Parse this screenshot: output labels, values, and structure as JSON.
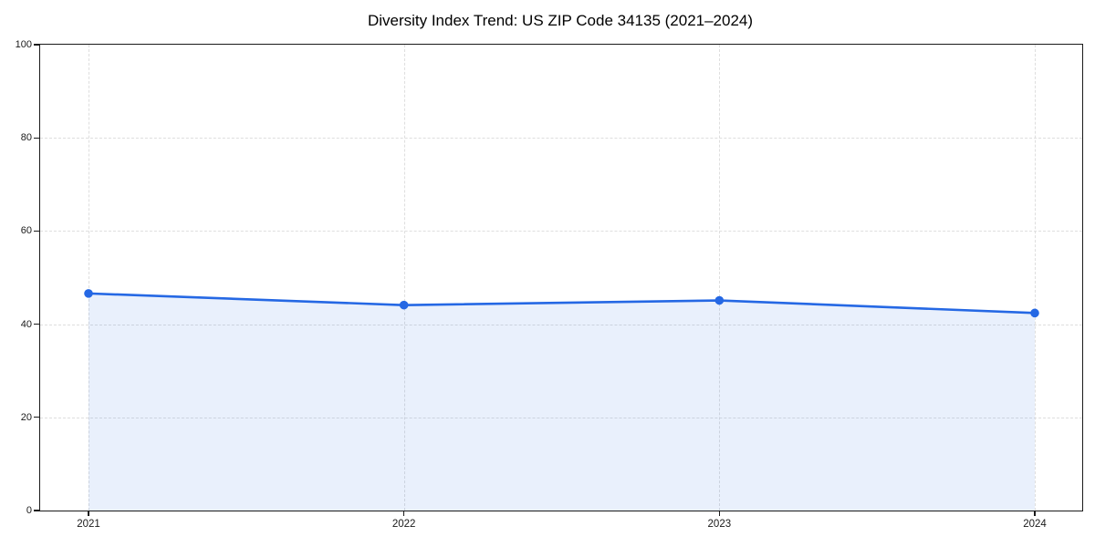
{
  "chart_data": {
    "type": "area",
    "title": "Diversity Index Trend: US ZIP Code 34135 (2021–2024)",
    "xlabel": "",
    "ylabel": "",
    "x": [
      "2021",
      "2022",
      "2023",
      "2024"
    ],
    "series": [
      {
        "name": "Diversity Index",
        "values": [
          46.6,
          44.1,
          45.1,
          42.4
        ]
      }
    ],
    "ylim": [
      0,
      100
    ],
    "yticks": [
      0,
      20,
      40,
      60,
      80,
      100
    ],
    "grid": "dashed-both-axes",
    "legend": "none",
    "marker": "circle",
    "line_color": "#2568E4",
    "fill_color": "rgba(37,104,228,0.10)",
    "grid_color": "#dedede",
    "spine_color": "#1a1a1a",
    "background_color": "#ffffff"
  }
}
